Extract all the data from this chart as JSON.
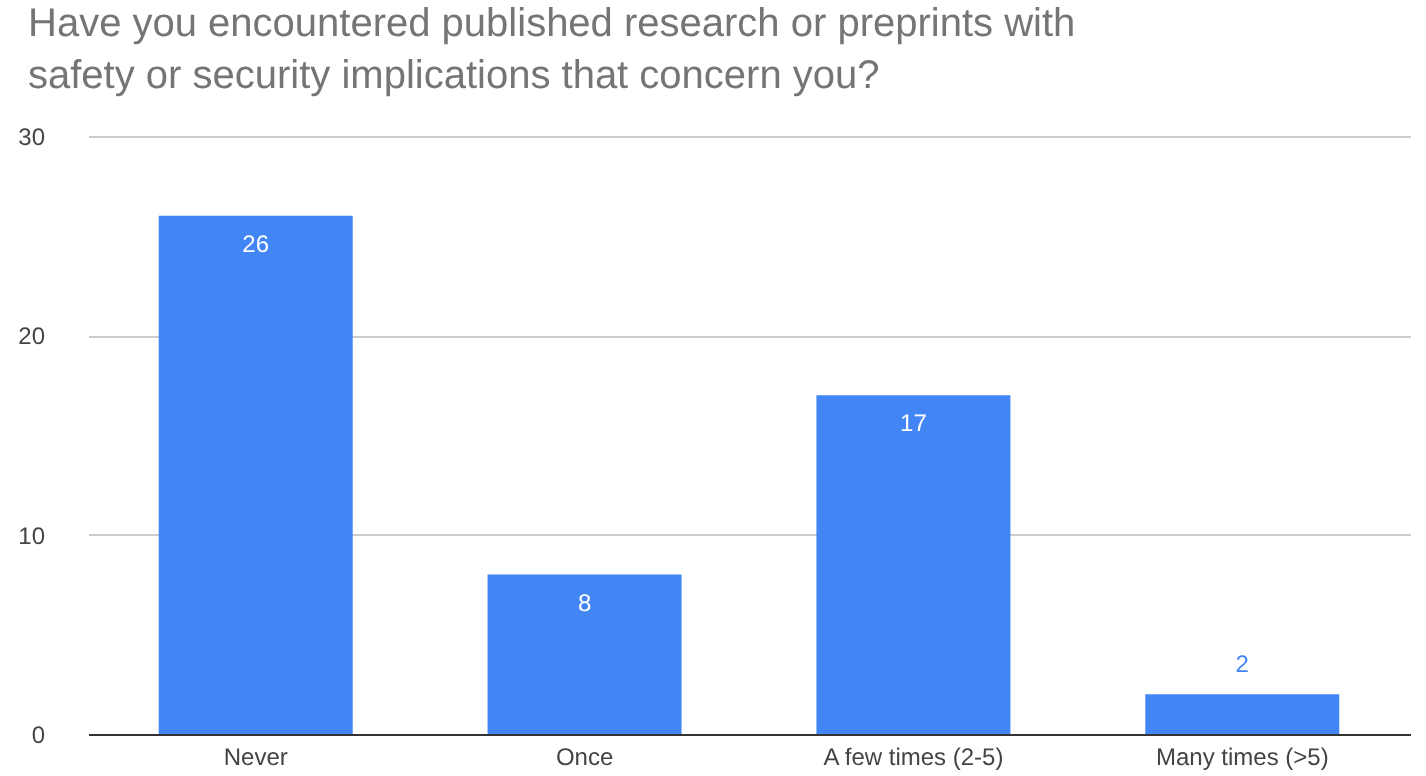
{
  "chart_data": {
    "type": "bar",
    "title": "Have you encountered published research or preprints with safety or security implications that concern you?",
    "categories": [
      "Never",
      "Once",
      "A few times (2-5)",
      "Many times (>5)"
    ],
    "values": [
      26,
      8,
      17,
      2
    ],
    "color": "#4285f4",
    "ylim": [
      0,
      30
    ],
    "yticks": [
      0,
      10,
      20,
      30
    ],
    "grid": "y",
    "data_labels": true
  }
}
